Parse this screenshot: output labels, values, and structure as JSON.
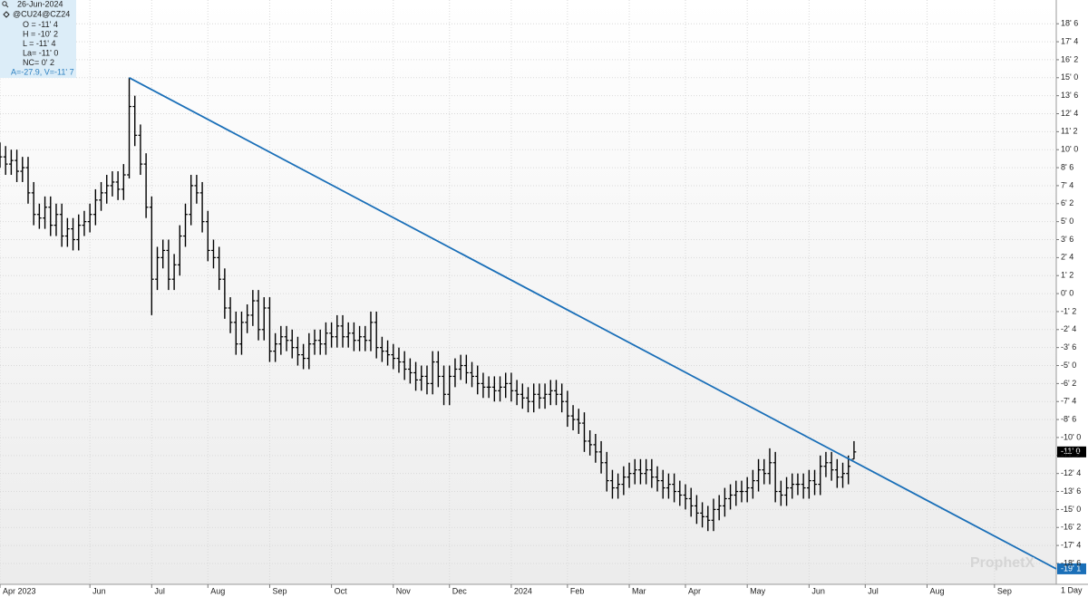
{
  "chart_data": {
    "type": "ohlc",
    "date": "26-Jun-2024",
    "title": "@CU24@CZ24",
    "info": [
      "O = -11' 4",
      "H = -10' 2",
      "L = -11' 4",
      "La= -11' 0",
      "NC= 0' 2",
      "A=-27.9, V=-11' 7"
    ],
    "watermark": "ProphetX",
    "interval": "1 Day",
    "color": "#000000",
    "grid": true,
    "xlim": [
      0,
      188
    ],
    "ylim": [
      -20.2,
      20.4
    ],
    "xticks": [
      {
        "value": 0,
        "label": "Apr 2023"
      },
      {
        "value": 16,
        "label": "Jun"
      },
      {
        "value": 27,
        "label": "Jul"
      },
      {
        "value": 37,
        "label": "Aug"
      },
      {
        "value": 48,
        "label": "Sep"
      },
      {
        "value": 59,
        "label": "Oct"
      },
      {
        "value": 70,
        "label": "Nov"
      },
      {
        "value": 80,
        "label": "Dec"
      },
      {
        "value": 91,
        "label": "2024"
      },
      {
        "value": 101,
        "label": "Feb"
      },
      {
        "value": 112,
        "label": "Mar"
      },
      {
        "value": 122,
        "label": "Apr"
      },
      {
        "value": 133,
        "label": "May"
      },
      {
        "value": 144,
        "label": "Jun"
      },
      {
        "value": 154,
        "label": "Jul"
      },
      {
        "value": 165,
        "label": "Aug"
      },
      {
        "value": 177,
        "label": "Sep"
      }
    ],
    "yticks": [
      {
        "value": 18.75,
        "label": "18' 6"
      },
      {
        "value": 17.5,
        "label": "17' 4"
      },
      {
        "value": 16.25,
        "label": "16' 2"
      },
      {
        "value": 15,
        "label": "15' 0"
      },
      {
        "value": 13.75,
        "label": "13' 6"
      },
      {
        "value": 12.5,
        "label": "12' 4"
      },
      {
        "value": 11.25,
        "label": "11' 2"
      },
      {
        "value": 10,
        "label": "10' 0"
      },
      {
        "value": 8.75,
        "label": "8' 6"
      },
      {
        "value": 7.5,
        "label": "7' 4"
      },
      {
        "value": 6.25,
        "label": "6' 2"
      },
      {
        "value": 5,
        "label": "5' 0"
      },
      {
        "value": 3.75,
        "label": "3' 6"
      },
      {
        "value": 2.5,
        "label": "2' 4"
      },
      {
        "value": 1.25,
        "label": "1' 2"
      },
      {
        "value": 0,
        "label": "0' 0"
      },
      {
        "value": -1.25,
        "label": "-1' 2"
      },
      {
        "value": -2.5,
        "label": "-2' 4"
      },
      {
        "value": -3.75,
        "label": "-3' 6"
      },
      {
        "value": -5,
        "label": "-5' 0"
      },
      {
        "value": -6.25,
        "label": "-6' 2"
      },
      {
        "value": -7.5,
        "label": "-7' 4"
      },
      {
        "value": -8.75,
        "label": "-8' 6"
      },
      {
        "value": -10,
        "label": "-10' 0"
      },
      {
        "value": -11.25,
        "label": "-11' 2"
      },
      {
        "value": -12.5,
        "label": "-12' 4"
      },
      {
        "value": -13.75,
        "label": "-13' 6"
      },
      {
        "value": -15,
        "label": "-15' 0"
      },
      {
        "value": -16.25,
        "label": "-16' 2"
      },
      {
        "value": -17.5,
        "label": "-17' 4"
      },
      {
        "value": -18.75,
        "label": "-18' 6"
      }
    ],
    "x": [
      0,
      1,
      2,
      3,
      4,
      5,
      6,
      7,
      8,
      9,
      10,
      11,
      12,
      13,
      14,
      15,
      16,
      17,
      18,
      19,
      20,
      21,
      22,
      23,
      24,
      25,
      26,
      27,
      28,
      29,
      30,
      31,
      32,
      33,
      34,
      35,
      36,
      37,
      38,
      39,
      40,
      41,
      42,
      43,
      44,
      45,
      46,
      47,
      48,
      49,
      50,
      51,
      52,
      53,
      54,
      55,
      56,
      57,
      58,
      59,
      60,
      61,
      62,
      63,
      64,
      65,
      66,
      67,
      68,
      69,
      70,
      71,
      72,
      73,
      74,
      75,
      76,
      77,
      78,
      79,
      80,
      81,
      82,
      83,
      84,
      85,
      86,
      87,
      88,
      89,
      90,
      91,
      92,
      93,
      94,
      95,
      96,
      97,
      98,
      99,
      100,
      101,
      102,
      103,
      104,
      105,
      106,
      107,
      108,
      109,
      110,
      111,
      112,
      113,
      114,
      115,
      116,
      117,
      118,
      119,
      120,
      121,
      122,
      123,
      124,
      125,
      126,
      127,
      128,
      129,
      130,
      131,
      132,
      133,
      134,
      135,
      136,
      137,
      138,
      139,
      140,
      141,
      142,
      143,
      144,
      145,
      146,
      147,
      148,
      149,
      150,
      151,
      152
    ],
    "open": [
      9.75,
      9.5,
      9.0,
      9.25,
      8.5,
      8.75,
      7.0,
      5.5,
      5.25,
      6.0,
      4.75,
      5.5,
      4.0,
      4.5,
      3.75,
      4.75,
      5.0,
      5.5,
      6.5,
      7.0,
      7.5,
      7.75,
      7.25,
      8.25,
      13.0,
      11.0,
      9.0,
      6.0,
      1.0,
      2.5,
      3.0,
      1.0,
      2.0,
      4.0,
      5.5,
      7.5,
      7.0,
      5.0,
      3.0,
      2.5,
      1.0,
      -1.0,
      -2.0,
      -3.5,
      -2.0,
      -1.5,
      -0.5,
      -2.5,
      -1.0,
      -4.0,
      -3.5,
      -3.0,
      -3.25,
      -3.75,
      -4.25,
      -4.5,
      -3.5,
      -3.25,
      -3.5,
      -2.75,
      -3.0,
      -2.25,
      -3.0,
      -2.75,
      -3.25,
      -3.0,
      -3.25,
      -2.0,
      -3.75,
      -4.0,
      -4.25,
      -4.5,
      -4.75,
      -5.25,
      -5.5,
      -6.0,
      -5.75,
      -6.25,
      -4.75,
      -5.75,
      -7.0,
      -5.75,
      -5.25,
      -5.0,
      -5.5,
      -5.75,
      -6.25,
      -6.5,
      -6.5,
      -6.75,
      -6.5,
      -6.25,
      -6.75,
      -7.0,
      -7.25,
      -7.5,
      -7.0,
      -7.25,
      -7.0,
      -6.75,
      -7.0,
      -7.5,
      -8.5,
      -8.75,
      -9.0,
      -10.25,
      -10.5,
      -11.0,
      -11.75,
      -13.0,
      -13.5,
      -13.25,
      -12.75,
      -12.5,
      -12.25,
      -12.5,
      -12.25,
      -12.75,
      -13.0,
      -13.5,
      -13.25,
      -13.75,
      -14.0,
      -14.25,
      -14.75,
      -15.25,
      -15.5,
      -15.75,
      -15.0,
      -14.75,
      -14.25,
      -14.0,
      -13.75,
      -13.75,
      -13.5,
      -13.0,
      -12.25,
      -12.5,
      -11.75,
      -13.75,
      -14.0,
      -13.5,
      -13.25,
      -13.25,
      -13.5,
      -13.0,
      -13.25,
      -12.0,
      -11.75,
      -12.25,
      -12.75,
      -12.5,
      -11.5
    ],
    "high": [
      10.5,
      10.25,
      10.0,
      10.0,
      9.5,
      9.5,
      7.75,
      6.25,
      6.75,
      6.75,
      6.25,
      6.25,
      5.25,
      5.25,
      5.5,
      5.75,
      6.25,
      7.25,
      7.75,
      8.25,
      8.5,
      8.5,
      9.0,
      15.0,
      13.75,
      11.75,
      9.75,
      6.75,
      3.25,
      3.75,
      3.75,
      2.75,
      4.75,
      6.25,
      8.25,
      8.25,
      7.75,
      5.75,
      3.75,
      3.25,
      1.75,
      -0.25,
      -1.25,
      -1.25,
      -0.75,
      0.25,
      0.25,
      -0.25,
      -0.25,
      -2.75,
      -2.25,
      -2.25,
      -2.5,
      -3.0,
      -3.5,
      -2.75,
      -2.5,
      -2.5,
      -2.0,
      -2.0,
      -1.5,
      -1.5,
      -2.0,
      -2.0,
      -2.25,
      -2.25,
      -1.25,
      -1.25,
      -3.0,
      -3.25,
      -3.5,
      -3.75,
      -4.0,
      -4.5,
      -4.75,
      -5.0,
      -5.0,
      -4.0,
      -4.0,
      -5.0,
      -5.0,
      -4.5,
      -4.25,
      -4.25,
      -4.75,
      -5.0,
      -5.5,
      -5.75,
      -5.75,
      -5.75,
      -5.5,
      -5.5,
      -6.0,
      -6.25,
      -6.5,
      -6.25,
      -6.25,
      -6.25,
      -6.0,
      -6.0,
      -6.25,
      -6.75,
      -7.75,
      -8.0,
      -8.25,
      -9.5,
      -9.75,
      -10.25,
      -11.0,
      -12.25,
      -12.5,
      -12.0,
      -11.75,
      -11.5,
      -11.5,
      -11.5,
      -11.5,
      -12.0,
      -12.25,
      -12.5,
      -12.5,
      -13.0,
      -13.25,
      -13.5,
      -14.0,
      -14.5,
      -14.75,
      -14.25,
      -14.0,
      -13.5,
      -13.25,
      -13.0,
      -13.0,
      -12.75,
      -12.25,
      -11.5,
      -11.5,
      -10.75,
      -11.0,
      -13.0,
      -12.75,
      -12.5,
      -12.5,
      -12.5,
      -12.25,
      -12.25,
      -11.25,
      -11.0,
      -11.0,
      -11.5,
      -11.75,
      -11.25,
      -10.25
    ],
    "low": [
      8.75,
      8.25,
      8.25,
      7.75,
      7.75,
      6.25,
      4.75,
      4.5,
      4.5,
      4.0,
      4.0,
      3.25,
      3.25,
      3.0,
      3.0,
      4.0,
      4.25,
      4.75,
      5.75,
      6.25,
      6.75,
      6.5,
      6.5,
      8.0,
      10.25,
      8.25,
      5.25,
      -1.5,
      0.25,
      1.75,
      0.25,
      0.25,
      1.25,
      3.25,
      4.75,
      6.25,
      4.25,
      2.25,
      1.75,
      0.25,
      -1.75,
      -2.75,
      -4.25,
      -4.25,
      -2.75,
      -2.25,
      -3.25,
      -3.25,
      -4.75,
      -4.75,
      -4.25,
      -4.0,
      -4.5,
      -5.0,
      -5.25,
      -5.25,
      -4.25,
      -4.25,
      -4.25,
      -3.75,
      -3.75,
      -3.75,
      -3.75,
      -4.0,
      -4.0,
      -4.0,
      -4.0,
      -4.5,
      -4.75,
      -5.0,
      -5.25,
      -5.5,
      -6.0,
      -6.25,
      -6.75,
      -6.75,
      -7.0,
      -7.0,
      -6.5,
      -7.75,
      -7.75,
      -6.5,
      -6.0,
      -6.25,
      -6.5,
      -7.0,
      -7.25,
      -7.25,
      -7.5,
      -7.5,
      -7.25,
      -7.5,
      -7.75,
      -8.0,
      -8.25,
      -8.25,
      -8.0,
      -8.0,
      -7.75,
      -7.75,
      -8.25,
      -9.25,
      -9.5,
      -9.75,
      -11.0,
      -11.25,
      -11.75,
      -12.5,
      -13.75,
      -14.25,
      -14.25,
      -14.0,
      -13.5,
      -13.25,
      -13.25,
      -13.25,
      -13.5,
      -13.75,
      -14.25,
      -14.25,
      -14.5,
      -14.75,
      -15.0,
      -15.5,
      -16.0,
      -16.25,
      -16.5,
      -16.5,
      -15.75,
      -15.5,
      -15.0,
      -14.75,
      -14.5,
      -14.5,
      -14.25,
      -13.75,
      -13.25,
      -13.25,
      -14.5,
      -14.75,
      -14.75,
      -14.25,
      -14.0,
      -14.25,
      -14.25,
      -14.0,
      -14.0,
      -12.75,
      -13.0,
      -13.5,
      -13.5,
      -13.25,
      -11.5
    ],
    "close": [
      9.5,
      9.0,
      9.25,
      8.5,
      8.75,
      7.0,
      5.5,
      5.25,
      6.0,
      4.75,
      5.5,
      4.0,
      4.5,
      3.75,
      4.75,
      5.0,
      5.5,
      6.5,
      7.0,
      7.5,
      7.75,
      7.25,
      8.25,
      13.0,
      11.0,
      9.0,
      6.0,
      1.0,
      2.5,
      3.0,
      1.0,
      2.0,
      4.0,
      5.5,
      7.5,
      7.0,
      5.0,
      3.0,
      2.5,
      1.0,
      -1.0,
      -2.0,
      -3.5,
      -2.0,
      -1.5,
      -0.5,
      -2.5,
      -1.0,
      -4.0,
      -3.5,
      -3.0,
      -3.25,
      -3.75,
      -4.25,
      -4.5,
      -3.5,
      -3.25,
      -3.5,
      -2.75,
      -3.0,
      -2.25,
      -3.0,
      -2.75,
      -3.25,
      -3.0,
      -3.25,
      -2.0,
      -3.75,
      -4.0,
      -4.25,
      -4.5,
      -4.75,
      -5.25,
      -5.5,
      -6.0,
      -5.75,
      -6.25,
      -4.75,
      -5.75,
      -7.0,
      -5.75,
      -5.25,
      -5.0,
      -5.5,
      -5.75,
      -6.25,
      -6.5,
      -6.5,
      -6.75,
      -6.5,
      -6.25,
      -6.75,
      -7.0,
      -7.25,
      -7.5,
      -7.0,
      -7.25,
      -7.0,
      -6.75,
      -7.0,
      -7.5,
      -8.5,
      -8.75,
      -9.0,
      -10.25,
      -10.5,
      -11.0,
      -11.75,
      -13.0,
      -13.5,
      -13.25,
      -12.75,
      -12.5,
      -12.25,
      -12.5,
      -12.25,
      -12.75,
      -13.0,
      -13.5,
      -13.25,
      -13.75,
      -14.0,
      -14.25,
      -14.75,
      -15.25,
      -15.5,
      -15.75,
      -15.0,
      -14.75,
      -14.25,
      -14.0,
      -13.75,
      -13.75,
      -13.5,
      -13.0,
      -12.25,
      -12.5,
      -11.75,
      -13.75,
      -14.0,
      -13.5,
      -13.25,
      -13.25,
      -13.5,
      -13.0,
      -13.25,
      -12.0,
      -11.75,
      -12.25,
      -12.75,
      -12.5,
      -12.0,
      -11.0
    ],
    "last_price": {
      "value": -11,
      "label": "-11' 0"
    },
    "trendline": {
      "x": [
        23,
        188
      ],
      "values": [
        15,
        -19.125
      ],
      "color": "#1a6fb8",
      "label": "-19' 1"
    }
  }
}
